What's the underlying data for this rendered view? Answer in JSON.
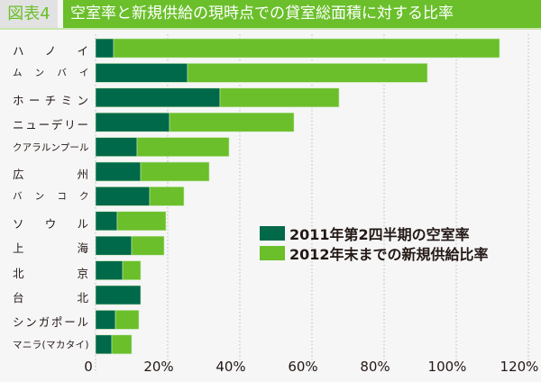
{
  "header": {
    "tag": "図表4",
    "title": "空室率と新規供給の現時点での貸室総面積に対する比率"
  },
  "colors": {
    "vacancy": "#00694a",
    "supply": "#6abf2a"
  },
  "chart_data": {
    "type": "bar",
    "orientation": "horizontal",
    "stacked": true,
    "title": "空室率と新規供給の現時点での貸室総面積に対する比率",
    "categories": [
      "ハ ノ イ",
      "ム ン バ イ",
      "ホーチミン",
      "ニューデリー",
      "クアラルンプール",
      "広 州",
      "バ ン コ ク",
      "ソ ウ ル",
      "上 海",
      "北 京",
      "台 北",
      "シンガポール",
      "マニラ(マカタイ)"
    ],
    "series": [
      {
        "name": "2011年第2四半期の空室率",
        "color": "#00694a",
        "values": [
          5,
          25.5,
          34.5,
          20.5,
          11.5,
          12.5,
          15,
          6,
          10,
          7.5,
          12.5,
          5.5,
          4.5
        ]
      },
      {
        "name": "2012年末までの新規供給比率",
        "color": "#6abf2a",
        "values": [
          107,
          66.5,
          33,
          34.5,
          25.5,
          19,
          9.5,
          13.5,
          9,
          5,
          0,
          6.5,
          5.5
        ]
      }
    ],
    "xlim": [
      0,
      120
    ],
    "xticks": [
      "0",
      "20%",
      "40%",
      "60%",
      "80%",
      "100%",
      "120%"
    ],
    "grid": "vertical dotted",
    "legend": "center-right"
  }
}
